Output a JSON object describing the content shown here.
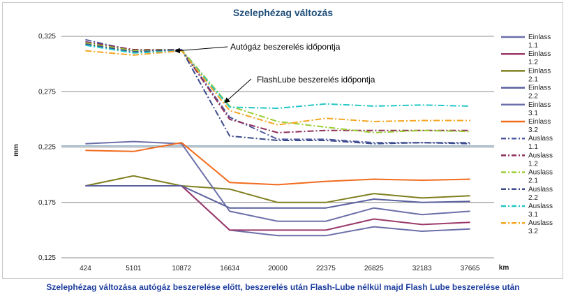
{
  "caption": "Szelephézag változása autógáz beszerelése előtt, beszerelés után Flash-Lube nélkül majd Flash Lube beszerelése után",
  "chart_data": {
    "type": "line",
    "title": "Szelephézag változás",
    "xlabel": "km",
    "ylabel": "mm",
    "categories": [
      "424",
      "5101",
      "10872",
      "16634",
      "20000",
      "22375",
      "26825",
      "32183",
      "37665"
    ],
    "ylim": [
      0.125,
      0.325
    ],
    "yticks": [
      "0,125",
      "0,175",
      "0,225",
      "0,275",
      "0,325"
    ],
    "reference_line": 0.226,
    "grid": "horizontal",
    "legend_position": "right",
    "annotations": [
      {
        "text": "Autógáz beszerelés időpontja",
        "points_to": "10872"
      },
      {
        "text": "FlashLube beszerelés időpontja",
        "points_to": "16634"
      }
    ],
    "series": [
      {
        "name": "Einlass 1.1",
        "color": "#6b6fa8",
        "style": "solid",
        "values": [
          0.19,
          0.19,
          0.19,
          0.15,
          0.145,
          0.145,
          0.153,
          0.149,
          0.151
        ]
      },
      {
        "name": "Einlass 1.2",
        "color": "#9b3a6a",
        "style": "solid",
        "values": [
          0.19,
          0.19,
          0.19,
          0.15,
          0.15,
          0.15,
          0.16,
          0.155,
          0.157
        ]
      },
      {
        "name": "Einlass 2.1",
        "color": "#7f7f1e",
        "style": "solid",
        "values": [
          0.19,
          0.199,
          0.19,
          0.187,
          0.175,
          0.175,
          0.183,
          0.179,
          0.181
        ]
      },
      {
        "name": "Einlass 2.2",
        "color": "#5a5f9e",
        "style": "solid",
        "values": [
          0.19,
          0.19,
          0.19,
          0.17,
          0.17,
          0.17,
          0.178,
          0.175,
          0.176
        ]
      },
      {
        "name": "Einlass 3.1",
        "color": "#6b6fa8",
        "style": "solid",
        "values": [
          0.228,
          0.23,
          0.228,
          0.167,
          0.158,
          0.158,
          0.17,
          0.164,
          0.167
        ]
      },
      {
        "name": "Einlass 3.2",
        "color": "#f26b1d",
        "style": "solid",
        "values": [
          0.222,
          0.221,
          0.229,
          0.193,
          0.191,
          0.194,
          0.196,
          0.195,
          0.196
        ]
      },
      {
        "name": "Auslass 1.1",
        "color": "#4f5aa0",
        "style": "dashdot",
        "values": [
          0.322,
          0.312,
          0.313,
          0.252,
          0.232,
          0.232,
          0.229,
          0.229,
          0.229
        ]
      },
      {
        "name": "Auslass 1.2",
        "color": "#8e2f5a",
        "style": "dashdot",
        "values": [
          0.32,
          0.313,
          0.313,
          0.25,
          0.238,
          0.24,
          0.24,
          0.24,
          0.24
        ]
      },
      {
        "name": "Auslass 2.1",
        "color": "#9acd32",
        "style": "dashdot",
        "values": [
          0.319,
          0.312,
          0.313,
          0.262,
          0.248,
          0.243,
          0.238,
          0.24,
          0.239
        ]
      },
      {
        "name": "Auslass 2.2",
        "color": "#3b4a8a",
        "style": "dashdot",
        "values": [
          0.318,
          0.311,
          0.313,
          0.235,
          0.231,
          0.231,
          0.228,
          0.229,
          0.228
        ]
      },
      {
        "name": "Auslass 3.1",
        "color": "#24c6c6",
        "style": "dashdot",
        "values": [
          0.317,
          0.31,
          0.312,
          0.261,
          0.26,
          0.264,
          0.262,
          0.263,
          0.262
        ]
      },
      {
        "name": "Auslass 3.2",
        "color": "#f5a623",
        "style": "dashdot",
        "values": [
          0.312,
          0.308,
          0.312,
          0.258,
          0.245,
          0.251,
          0.248,
          0.249,
          0.249
        ]
      }
    ]
  }
}
